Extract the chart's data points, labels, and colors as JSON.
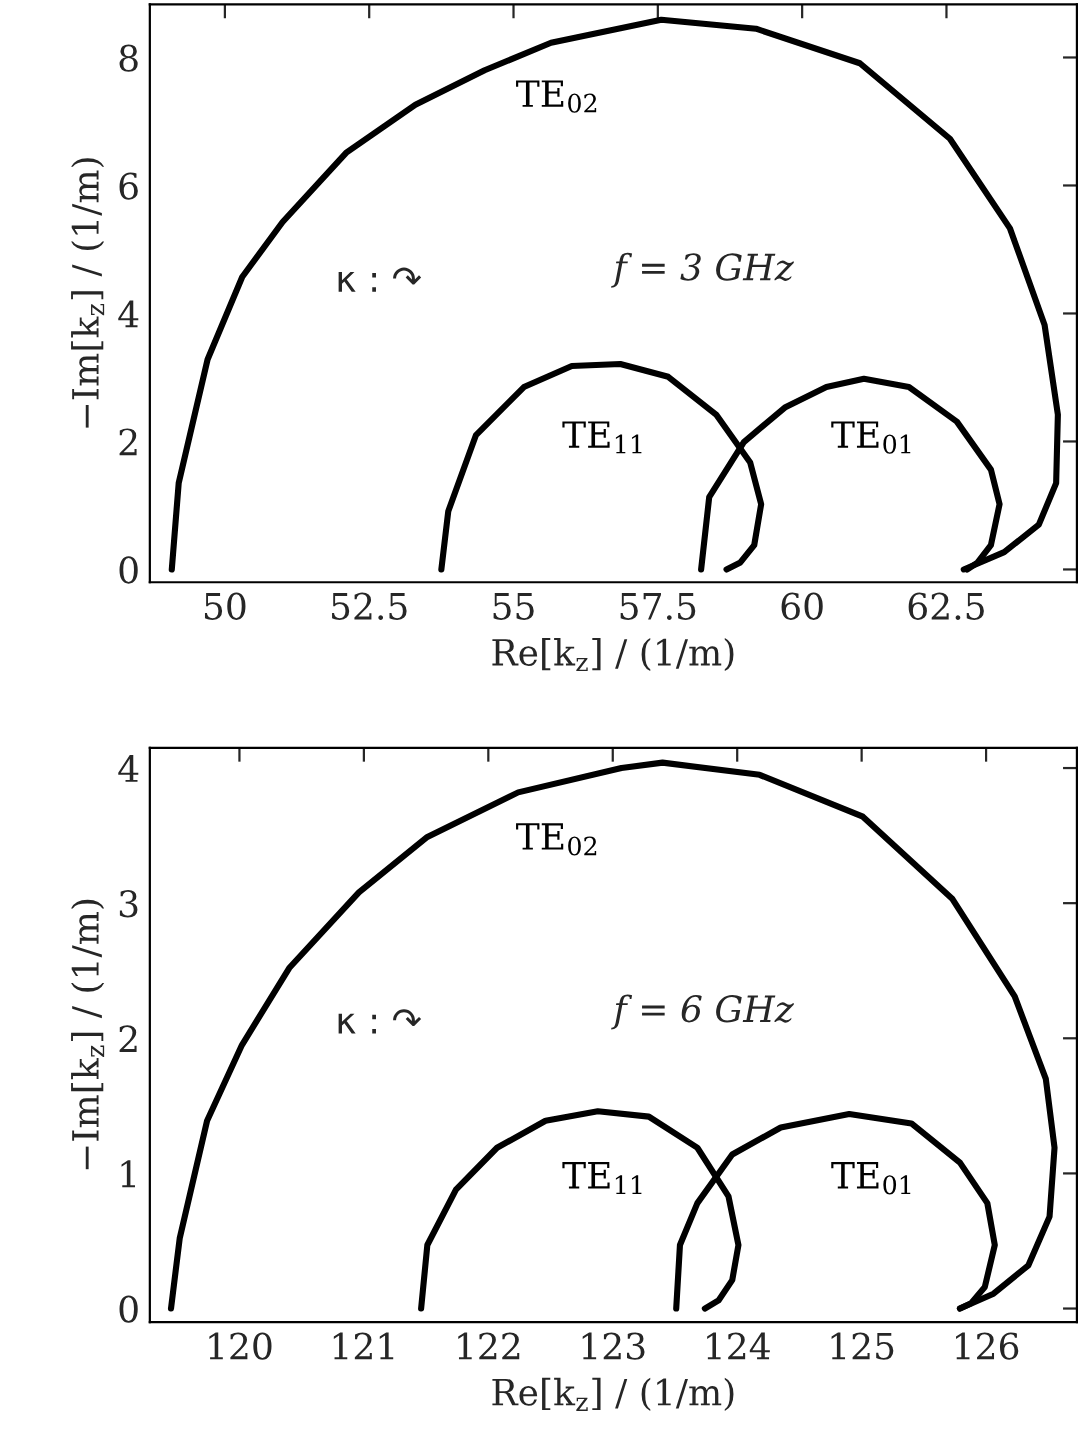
{
  "chart_data": [
    {
      "type": "line",
      "xlabel": "Re[k$_{z}$] / (1/m)",
      "ylabel": "−Im[k$_{z}$] / (1/m)",
      "xlim": [
        48.7,
        64.76
      ],
      "ylim": [
        -0.2,
        8.83
      ],
      "xticks": [
        50,
        52.5,
        55,
        57.5,
        60,
        62.5
      ],
      "yticks": [
        0,
        2,
        4,
        6,
        8
      ],
      "grid": false,
      "legend": false,
      "series": [
        {
          "name": "TE$_{02}$",
          "color": "#000000",
          "x": [
            49.08,
            49.2,
            49.7,
            50.3,
            51.0,
            52.1,
            53.3,
            54.5,
            55.65,
            57.56,
            59.2,
            61.0,
            62.56,
            63.6,
            64.2,
            64.43,
            64.4,
            64.1,
            63.5,
            62.8
          ],
          "values": [
            0,
            1.35,
            3.28,
            4.57,
            5.43,
            6.51,
            7.26,
            7.8,
            8.23,
            8.59,
            8.45,
            7.91,
            6.73,
            5.33,
            3.82,
            2.42,
            1.35,
            0.7,
            0.27,
            0
          ]
        },
        {
          "name": "TE$_{11}$",
          "color": "#000000",
          "x": [
            53.75,
            53.87,
            54.35,
            55.18,
            56.01,
            56.85,
            57.68,
            58.51,
            59.1,
            59.29,
            59.17,
            58.93,
            58.69
          ],
          "values": [
            0,
            0.91,
            2.1,
            2.85,
            3.18,
            3.21,
            3.01,
            2.42,
            1.67,
            1.02,
            0.38,
            0.11,
            0
          ]
        },
        {
          "name": "TE$_{01}$",
          "color": "#000000",
          "x": [
            58.25,
            58.39,
            58.99,
            59.7,
            60.42,
            61.07,
            61.85,
            62.68,
            63.27,
            63.42,
            63.27,
            63.04,
            62.86
          ],
          "values": [
            0,
            1.13,
            1.99,
            2.53,
            2.85,
            2.98,
            2.85,
            2.31,
            1.56,
            1.02,
            0.38,
            0.11,
            0
          ]
        }
      ],
      "annotations": [
        "κ : ↷",
        "f = 3 GHz"
      ]
    },
    {
      "type": "line",
      "xlabel": "Re[k$_{z}$] / (1/m)",
      "ylabel": "−Im[k$_{z}$] / (1/m)",
      "xlim": [
        119.28,
        126.73
      ],
      "ylim": [
        -0.1,
        4.15
      ],
      "xticks": [
        120,
        121,
        122,
        123,
        124,
        125,
        126
      ],
      "yticks": [
        0,
        1,
        2,
        3,
        4
      ],
      "grid": false,
      "legend": false,
      "series": [
        {
          "name": "TE$_{02}$",
          "color": "#000000",
          "x": [
            119.45,
            119.52,
            119.74,
            120.02,
            120.4,
            120.96,
            121.51,
            122.24,
            123.07,
            123.4,
            124.18,
            125.01,
            125.73,
            126.23,
            126.48,
            126.55,
            126.51,
            126.34,
            126.06,
            125.79
          ],
          "values": [
            0,
            0.52,
            1.39,
            1.95,
            2.52,
            3.08,
            3.49,
            3.82,
            4.0,
            4.04,
            3.95,
            3.64,
            3.03,
            2.31,
            1.7,
            1.19,
            0.68,
            0.32,
            0.11,
            0
          ]
        },
        {
          "name": "TE$_{11}$",
          "color": "#000000",
          "x": [
            121.46,
            121.51,
            121.74,
            122.07,
            122.46,
            122.88,
            123.29,
            123.68,
            123.93,
            124.01,
            123.96,
            123.85,
            123.74
          ],
          "values": [
            0,
            0.47,
            0.88,
            1.19,
            1.39,
            1.46,
            1.42,
            1.19,
            0.83,
            0.47,
            0.21,
            0.06,
            0
          ]
        },
        {
          "name": "TE$_{01}$",
          "color": "#000000",
          "x": [
            123.51,
            123.54,
            123.68,
            123.96,
            124.35,
            124.9,
            125.4,
            125.79,
            126.01,
            126.07,
            125.99,
            125.88,
            125.79
          ],
          "values": [
            0,
            0.47,
            0.78,
            1.14,
            1.34,
            1.44,
            1.37,
            1.08,
            0.78,
            0.47,
            0.16,
            0.04,
            0
          ]
        }
      ],
      "annotations": [
        "κ : ↷",
        "f = 6 GHz"
      ]
    }
  ]
}
